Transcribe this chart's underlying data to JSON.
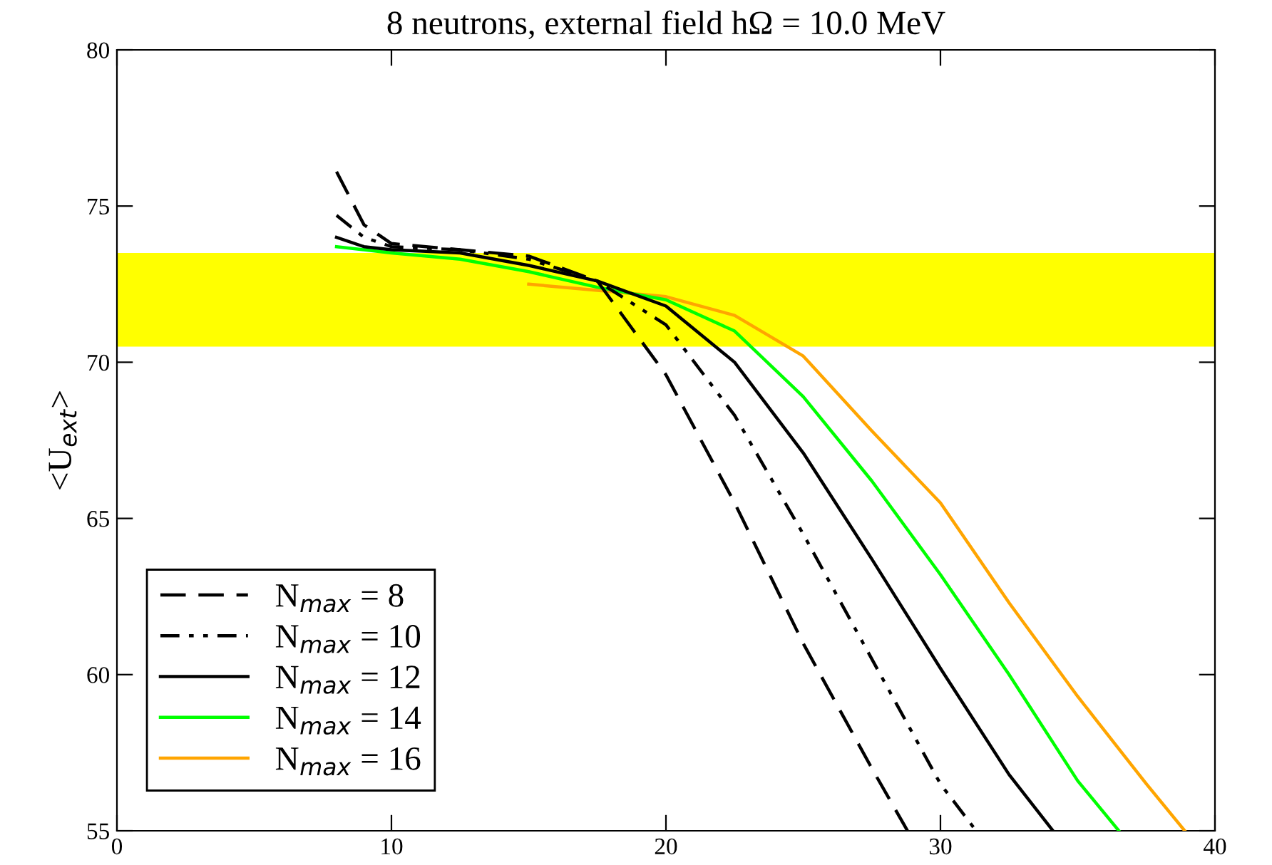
{
  "chart_data": {
    "type": "line",
    "title": "8 neutrons, external field hΩ = 10.0 MeV",
    "ylabel": "<U$_{ext}$>",
    "xlim": [
      0,
      40
    ],
    "xticks": [
      0,
      10,
      20,
      30,
      40
    ],
    "ylim": [
      55,
      80
    ],
    "yticks": [
      55,
      60,
      65,
      70,
      75,
      80
    ],
    "grid": false,
    "legend": "bottom left",
    "bands": [
      {
        "axis": "y",
        "from": 70.5,
        "to": 73.5,
        "color": "#ffff00"
      }
    ],
    "series": [
      {
        "name": "N$_{max}$ = 8",
        "color": "#000000",
        "line_style": "dashed",
        "x": [
          8,
          9,
          10,
          12.5,
          15,
          17.5,
          20,
          22.5,
          25,
          27.5,
          28.8
        ],
        "values": [
          76.1,
          74.4,
          73.8,
          73.6,
          73.4,
          72.6,
          69.6,
          65.5,
          61.0,
          57.0,
          55.0
        ]
      },
      {
        "name": "N$_{max}$ = 10",
        "color": "#000000",
        "line_style": "dashdotdot",
        "x": [
          8,
          9,
          10,
          12.5,
          15,
          17.5,
          20,
          22.5,
          25,
          27.5,
          30,
          31.3
        ],
        "values": [
          74.7,
          74.0,
          73.7,
          73.6,
          73.3,
          72.6,
          71.2,
          68.3,
          64.5,
          60.5,
          56.5,
          55.0
        ]
      },
      {
        "name": "N$_{max}$ = 12",
        "color": "#000000",
        "line_style": "solid",
        "x": [
          8,
          9,
          10,
          12.5,
          15,
          17.5,
          20,
          22.5,
          25,
          27.5,
          30,
          32.5,
          34.1
        ],
        "values": [
          74.0,
          73.7,
          73.6,
          73.5,
          73.1,
          72.6,
          71.8,
          70.0,
          67.1,
          63.7,
          60.2,
          56.8,
          55.0
        ]
      },
      {
        "name": "N$_{max}$ = 14",
        "color": "#00ff00",
        "line_style": "solid",
        "x": [
          8,
          9,
          10,
          12.5,
          15,
          17.5,
          20,
          22.5,
          25,
          27.5,
          30,
          32.5,
          35,
          36.5
        ],
        "values": [
          73.7,
          73.6,
          73.5,
          73.3,
          72.9,
          72.4,
          72.0,
          71.0,
          68.9,
          66.2,
          63.2,
          60.0,
          56.6,
          55.0
        ]
      },
      {
        "name": "N$_{max}$ = 16",
        "color": "#ffa500",
        "line_style": "solid",
        "x": [
          15,
          17.5,
          20,
          22.5,
          25,
          27.5,
          30,
          32.5,
          35,
          37.5,
          38.9
        ],
        "values": [
          72.5,
          72.3,
          72.1,
          71.5,
          70.2,
          67.8,
          65.5,
          62.3,
          59.3,
          56.5,
          55.0
        ]
      }
    ]
  }
}
